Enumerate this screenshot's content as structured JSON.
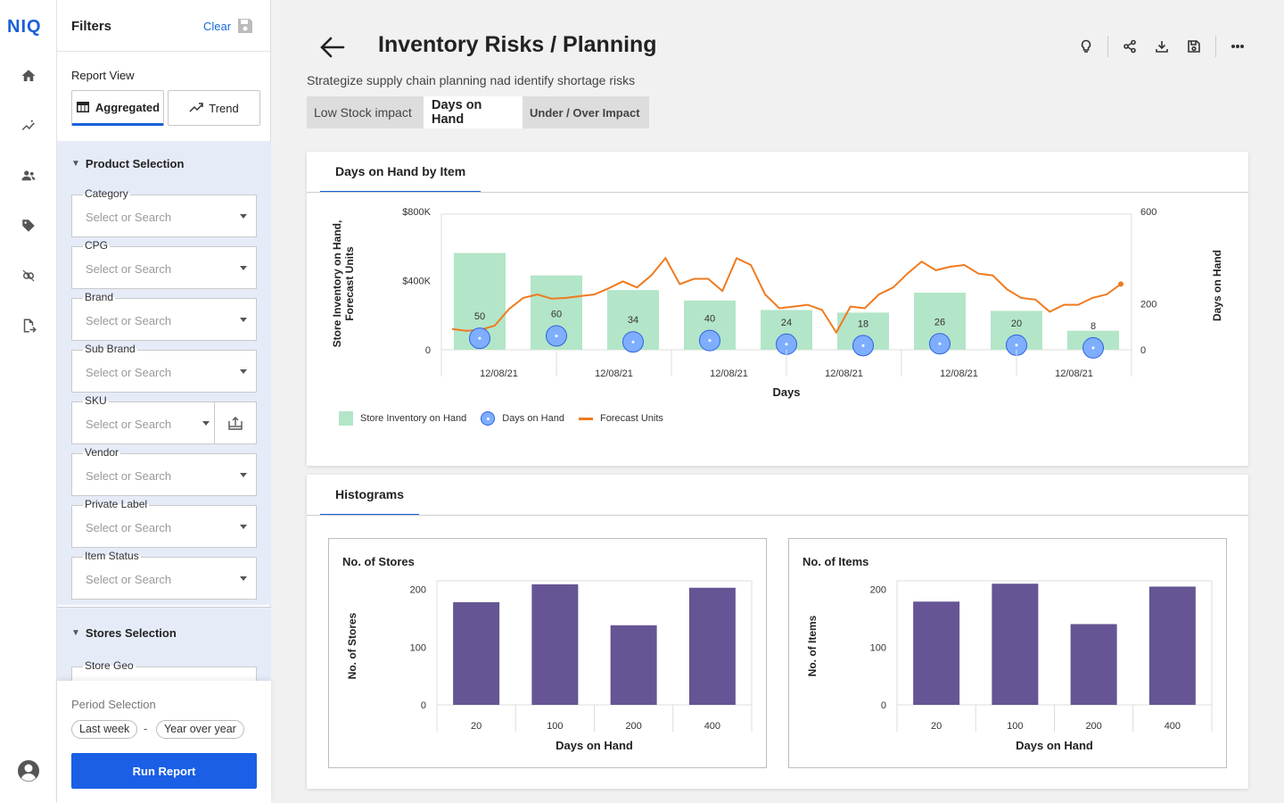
{
  "brand": {
    "logo_text": "NIQ",
    "accent": "#1a5fd8"
  },
  "rail": {
    "icons": [
      "home-icon",
      "insights-icon",
      "people-icon",
      "tag-icon",
      "integrations-icon",
      "export-icon",
      "user-avatar-icon"
    ]
  },
  "filters": {
    "title": "Filters",
    "clear_label": "Clear",
    "report_view_label": "Report View",
    "report_views": [
      {
        "label": "Aggregated",
        "active": true
      },
      {
        "label": "Trend",
        "active": false
      }
    ],
    "product_section_title": "Product Selection",
    "fields": [
      {
        "label": "Category",
        "placeholder": "Select or Search"
      },
      {
        "label": "CPG",
        "placeholder": "Select or Search"
      },
      {
        "label": "Brand",
        "placeholder": "Select or Search"
      },
      {
        "label": "Sub Brand",
        "placeholder": "Select or Search"
      },
      {
        "label": "SKU",
        "placeholder": "Select or Search"
      },
      {
        "label": "Vendor",
        "placeholder": "Select or Search"
      },
      {
        "label": "Private Label",
        "placeholder": "Select or Search"
      },
      {
        "label": "Item Status",
        "placeholder": "Select or Search"
      }
    ],
    "stores_section_title": "Stores Selection",
    "store_geo_label": "Store Geo",
    "period_label": "Period Selection",
    "period_from": "Last week",
    "period_separator": "-",
    "period_to": "Year over year",
    "run_label": "Run Report"
  },
  "header": {
    "title": "Inventory Risks / Planning",
    "subtitle": "Strategize supply chain planning nad identify shortage risks",
    "tabs": [
      {
        "label": "Low Stock impact",
        "active": false
      },
      {
        "label": "Days on Hand",
        "active": true
      },
      {
        "label": "Under / Over Impact",
        "active": false
      }
    ]
  },
  "card1": {
    "tab_label": "Days on Hand by Item"
  },
  "card2": {
    "tab_label": "Histograms"
  },
  "chart_data": [
    {
      "type": "bar+line",
      "title": "Days on Hand by Item",
      "xlabel": "Days",
      "ylabel_left": "Store Inventory on Hand, Forecast Units",
      "ylabel_right": "Days on Hand",
      "y_left_ticks": [
        "$800K",
        "$400K",
        "0"
      ],
      "y_right_ticks": [
        "600",
        "200",
        "0"
      ],
      "ylim_left": [
        0,
        800000
      ],
      "ylim_right": [
        0,
        600
      ],
      "x_tick_labels": [
        "12/08/21",
        "12/08/21",
        "12/08/21",
        "12/08/21",
        "12/08/21",
        "12/08/21"
      ],
      "legend": [
        "Store Inventory on Hand",
        "Days on Hand",
        "Forecast Units"
      ],
      "colors": {
        "bars": "#b3e5c8",
        "dots": "#7faeff",
        "dot_border": "#2d62e0",
        "line": "#f07a1e"
      },
      "series": [
        {
          "name": "Store Inventory on Hand",
          "values": [
            560000,
            430000,
            345000,
            285000,
            230000,
            215000,
            330000,
            225000,
            110000
          ]
        },
        {
          "name": "Days on Hand",
          "values": [
            50,
            60,
            34,
            40,
            24,
            18,
            26,
            20,
            8
          ]
        },
        {
          "name": "Forecast Units",
          "values": [
            120000,
            110000,
            115000,
            140000,
            235000,
            300000,
            320000,
            295000,
            300000,
            310000,
            320000,
            355000,
            395000,
            360000,
            430000,
            530000,
            380000,
            410000,
            410000,
            340000,
            530000,
            490000,
            320000,
            240000,
            250000,
            260000,
            230000,
            100000,
            250000,
            240000,
            320000,
            360000,
            440000,
            510000,
            460000,
            480000,
            490000,
            440000,
            430000,
            350000,
            300000,
            290000,
            220000,
            260000,
            260000,
            300000,
            320000,
            380000
          ]
        }
      ]
    },
    {
      "type": "bar",
      "title": "No. of Stores",
      "xlabel": "Days on Hand",
      "ylabel": "No. of Stores",
      "categories": [
        "20",
        "100",
        "200",
        "400"
      ],
      "values": [
        178,
        209,
        138,
        203
      ],
      "y_ticks": [
        "200",
        "100",
        "0"
      ],
      "ylim": [
        0,
        215
      ],
      "color": "#655594"
    },
    {
      "type": "bar",
      "title": "No. of Items",
      "xlabel": "Days on Hand",
      "ylabel": "No. of Items",
      "categories": [
        "20",
        "100",
        "200",
        "400"
      ],
      "values": [
        179,
        210,
        140,
        205
      ],
      "y_ticks": [
        "200",
        "100",
        "0"
      ],
      "ylim": [
        0,
        215
      ],
      "color": "#655594"
    }
  ]
}
